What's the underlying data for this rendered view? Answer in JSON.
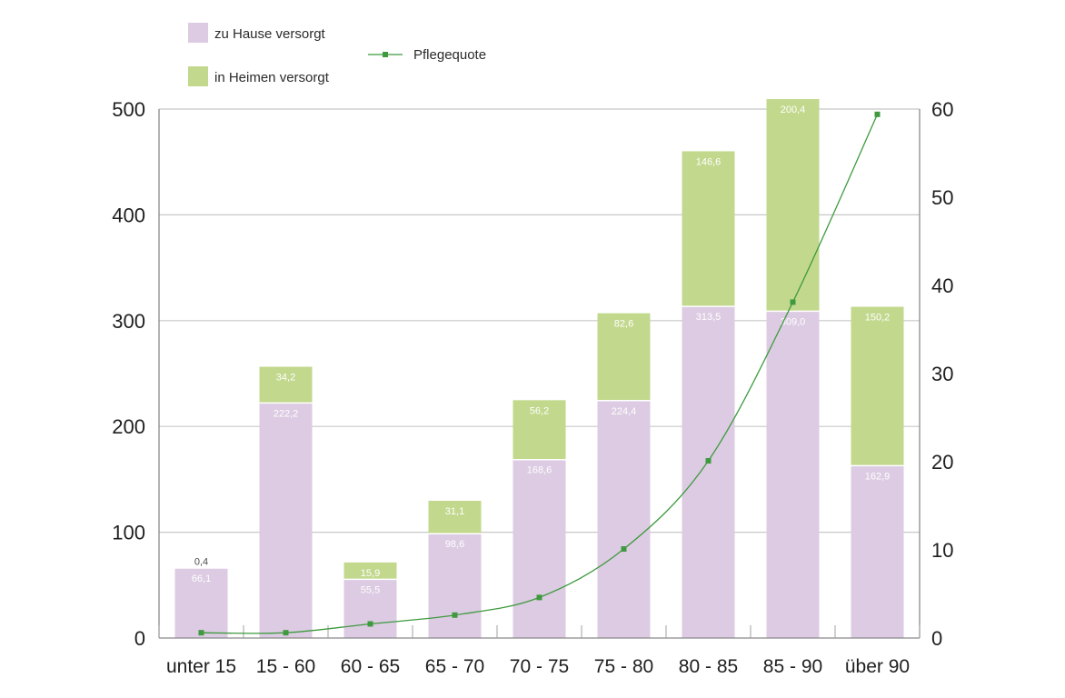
{
  "chart_data": {
    "type": "bar",
    "stacked": true,
    "categories": [
      "unter 15",
      "15 - 60",
      "60 - 65",
      "65 - 70",
      "70 - 75",
      "75 - 80",
      "80 - 85",
      "85 - 90",
      "über 90"
    ],
    "series": [
      {
        "name": "zu Hause versorgt",
        "color": "#dccbe2",
        "values": [
          66.1,
          222.2,
          55.5,
          98.6,
          168.6,
          224.4,
          313.5,
          309.0,
          162.9
        ],
        "labels": [
          "66,1",
          "222,2",
          "55,5",
          "98,6",
          "168,6",
          "224,4",
          "313,5",
          "309,0",
          "162,9"
        ]
      },
      {
        "name": "in Heimen versorgt",
        "color": "#c2d88d",
        "values": [
          0.4,
          34.2,
          15.9,
          31.1,
          56.2,
          82.6,
          146.6,
          200.4,
          150.2
        ],
        "labels": [
          "0,4",
          "34,2",
          "15,9",
          "31,1",
          "56,2",
          "82,6",
          "146,6",
          "200,4",
          "150,2"
        ]
      },
      {
        "name": "Pflegequote",
        "color": "#3f9a3f",
        "type": "line",
        "axis": "right",
        "values": [
          0.6,
          0.6,
          1.6,
          2.6,
          4.6,
          10.1,
          20.1,
          38.1,
          59.4
        ]
      }
    ],
    "y_left": {
      "min": 0,
      "max": 500,
      "ticks": [
        0,
        100,
        200,
        300,
        400,
        500
      ]
    },
    "y_right": {
      "min": 0,
      "max": 60,
      "ticks": [
        0,
        10,
        20,
        30,
        40,
        50,
        60
      ]
    },
    "grid": true,
    "legend_position": "top-left"
  }
}
